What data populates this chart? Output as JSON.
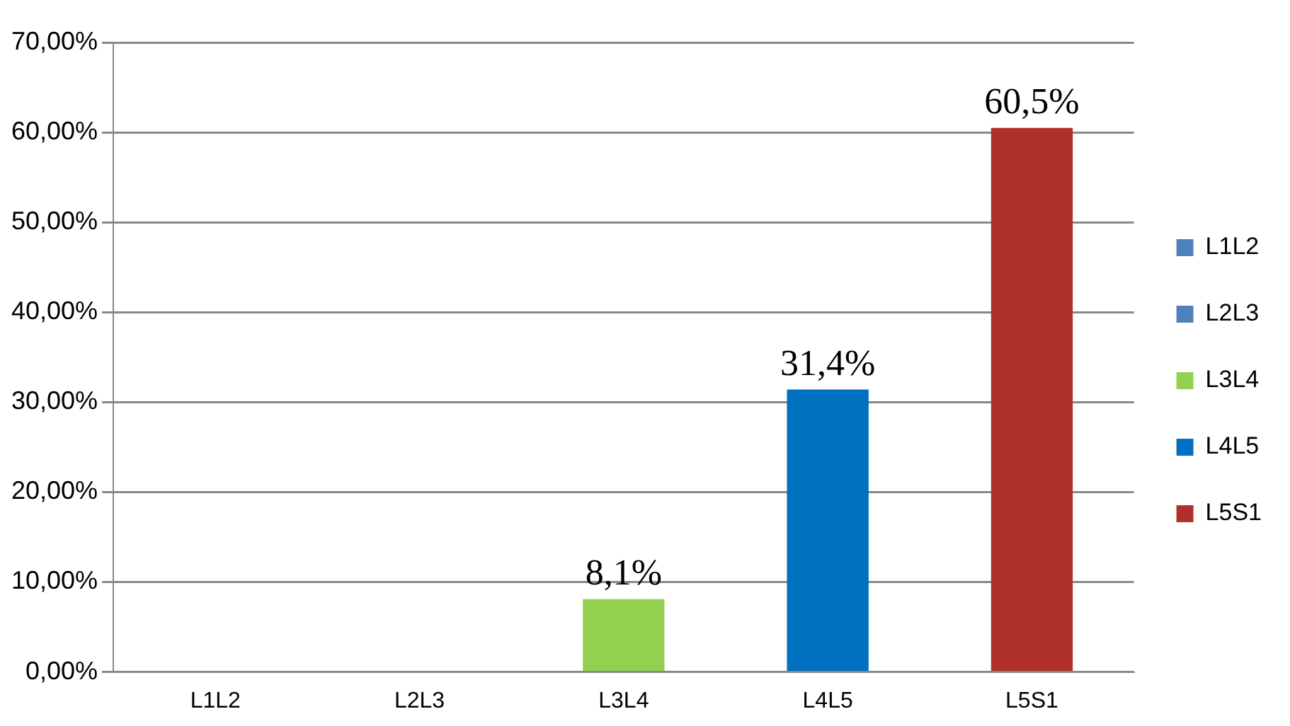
{
  "chart_data": {
    "type": "bar",
    "categories": [
      "L1L2",
      "L2L3",
      "L3L4",
      "L4L5",
      "L5S1"
    ],
    "series": [
      {
        "name": "L1L2",
        "color": "#4f81bd",
        "values": [
          0,
          null,
          null,
          null,
          null
        ]
      },
      {
        "name": "L2L3",
        "color": "#4f81bd",
        "values": [
          null,
          0,
          null,
          null,
          null
        ]
      },
      {
        "name": "L3L4",
        "color": "#92d050",
        "values": [
          null,
          null,
          8.1,
          null,
          null
        ],
        "value_labels": [
          null,
          null,
          "8,1%",
          null,
          null
        ]
      },
      {
        "name": "L4L5",
        "color": "#0070c0",
        "values": [
          null,
          null,
          null,
          31.4,
          null
        ],
        "value_labels": [
          null,
          null,
          null,
          "31,4%",
          null
        ]
      },
      {
        "name": "L5S1",
        "color": "#b0302c",
        "values": [
          null,
          null,
          null,
          null,
          60.5
        ],
        "value_labels": [
          null,
          null,
          null,
          null,
          "60,5%"
        ]
      }
    ],
    "ylim": [
      0,
      70
    ],
    "yticks": [
      {
        "value": 0,
        "label": "0,00%"
      },
      {
        "value": 10,
        "label": "10,00%"
      },
      {
        "value": 20,
        "label": "20,00%"
      },
      {
        "value": 30,
        "label": "30,00%"
      },
      {
        "value": 40,
        "label": "40,00%"
      },
      {
        "value": 50,
        "label": "50,00%"
      },
      {
        "value": 60,
        "label": "60,00%"
      },
      {
        "value": 70,
        "label": "70,00%"
      }
    ],
    "grid": "y",
    "legend": "right"
  }
}
